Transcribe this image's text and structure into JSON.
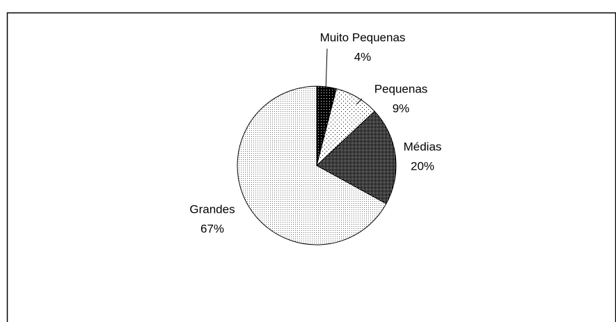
{
  "chart_data": {
    "type": "pie",
    "categories": [
      "Muito Pequenas",
      "Pequenas",
      "Médias",
      "Grandes"
    ],
    "values": [
      4,
      9,
      20,
      67
    ],
    "value_labels": [
      "4%",
      "9%",
      "20%",
      "67%"
    ],
    "start_angle": 90,
    "direction": "clockwise"
  }
}
